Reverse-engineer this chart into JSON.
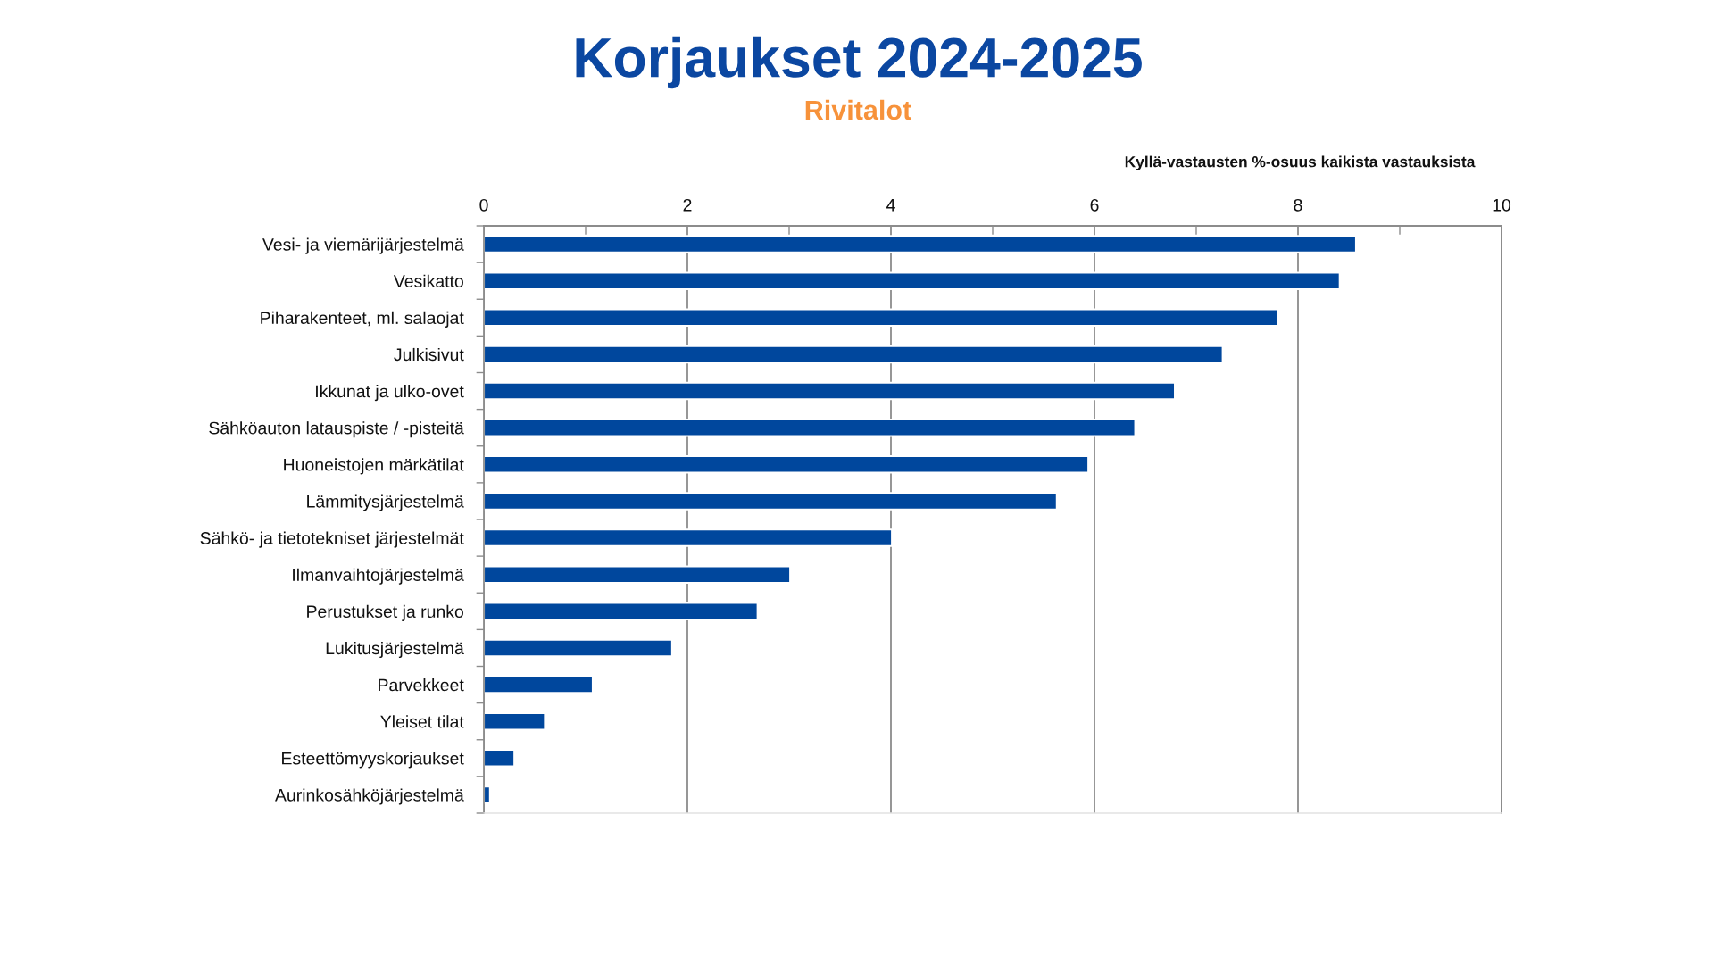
{
  "chart_data": {
    "type": "bar",
    "orientation": "horizontal",
    "title": "Korjaukset 2024-2025",
    "subtitle": "Rivitalot",
    "xlabel": "Kyllä-vastausten %-osuus kaikista vastauksista",
    "categories": [
      "Vesi- ja viemärijärjestelmä",
      "Vesikatto",
      "Piharakenteet, ml. salaojat",
      "Julkisivut",
      "Ikkunat ja ulko-ovet",
      "Sähköauton latauspiste / -pisteitä",
      "Huoneistojen märkätilat",
      "Lämmitysjärjestelmä",
      "Sähkö- ja tietotekniset järjestelmät",
      "Ilmanvaihtojärjestelmä",
      "Perustukset ja runko",
      "Lukitusjärjestelmä",
      "Parvekkeet",
      "Yleiset tilat",
      "Esteettömyyskorjaukset",
      "Aurinkosähköjärjestelmä"
    ],
    "values": [
      8.57,
      8.41,
      7.8,
      7.26,
      6.79,
      6.4,
      5.94,
      5.63,
      4.01,
      3.01,
      2.69,
      1.85,
      1.07,
      0.6,
      0.3,
      0.06
    ],
    "color": "#00479d",
    "xlim": [
      0,
      10
    ],
    "xticks": [
      0,
      {
        "value": 1,
        "label": null
      },
      2,
      {
        "value": 3,
        "label": null
      },
      4,
      {
        "value": 5,
        "label": null
      },
      6,
      {
        "value": 7,
        "label": null
      },
      8,
      {
        "value": 9,
        "label": null
      },
      10
    ],
    "grid": "x"
  }
}
